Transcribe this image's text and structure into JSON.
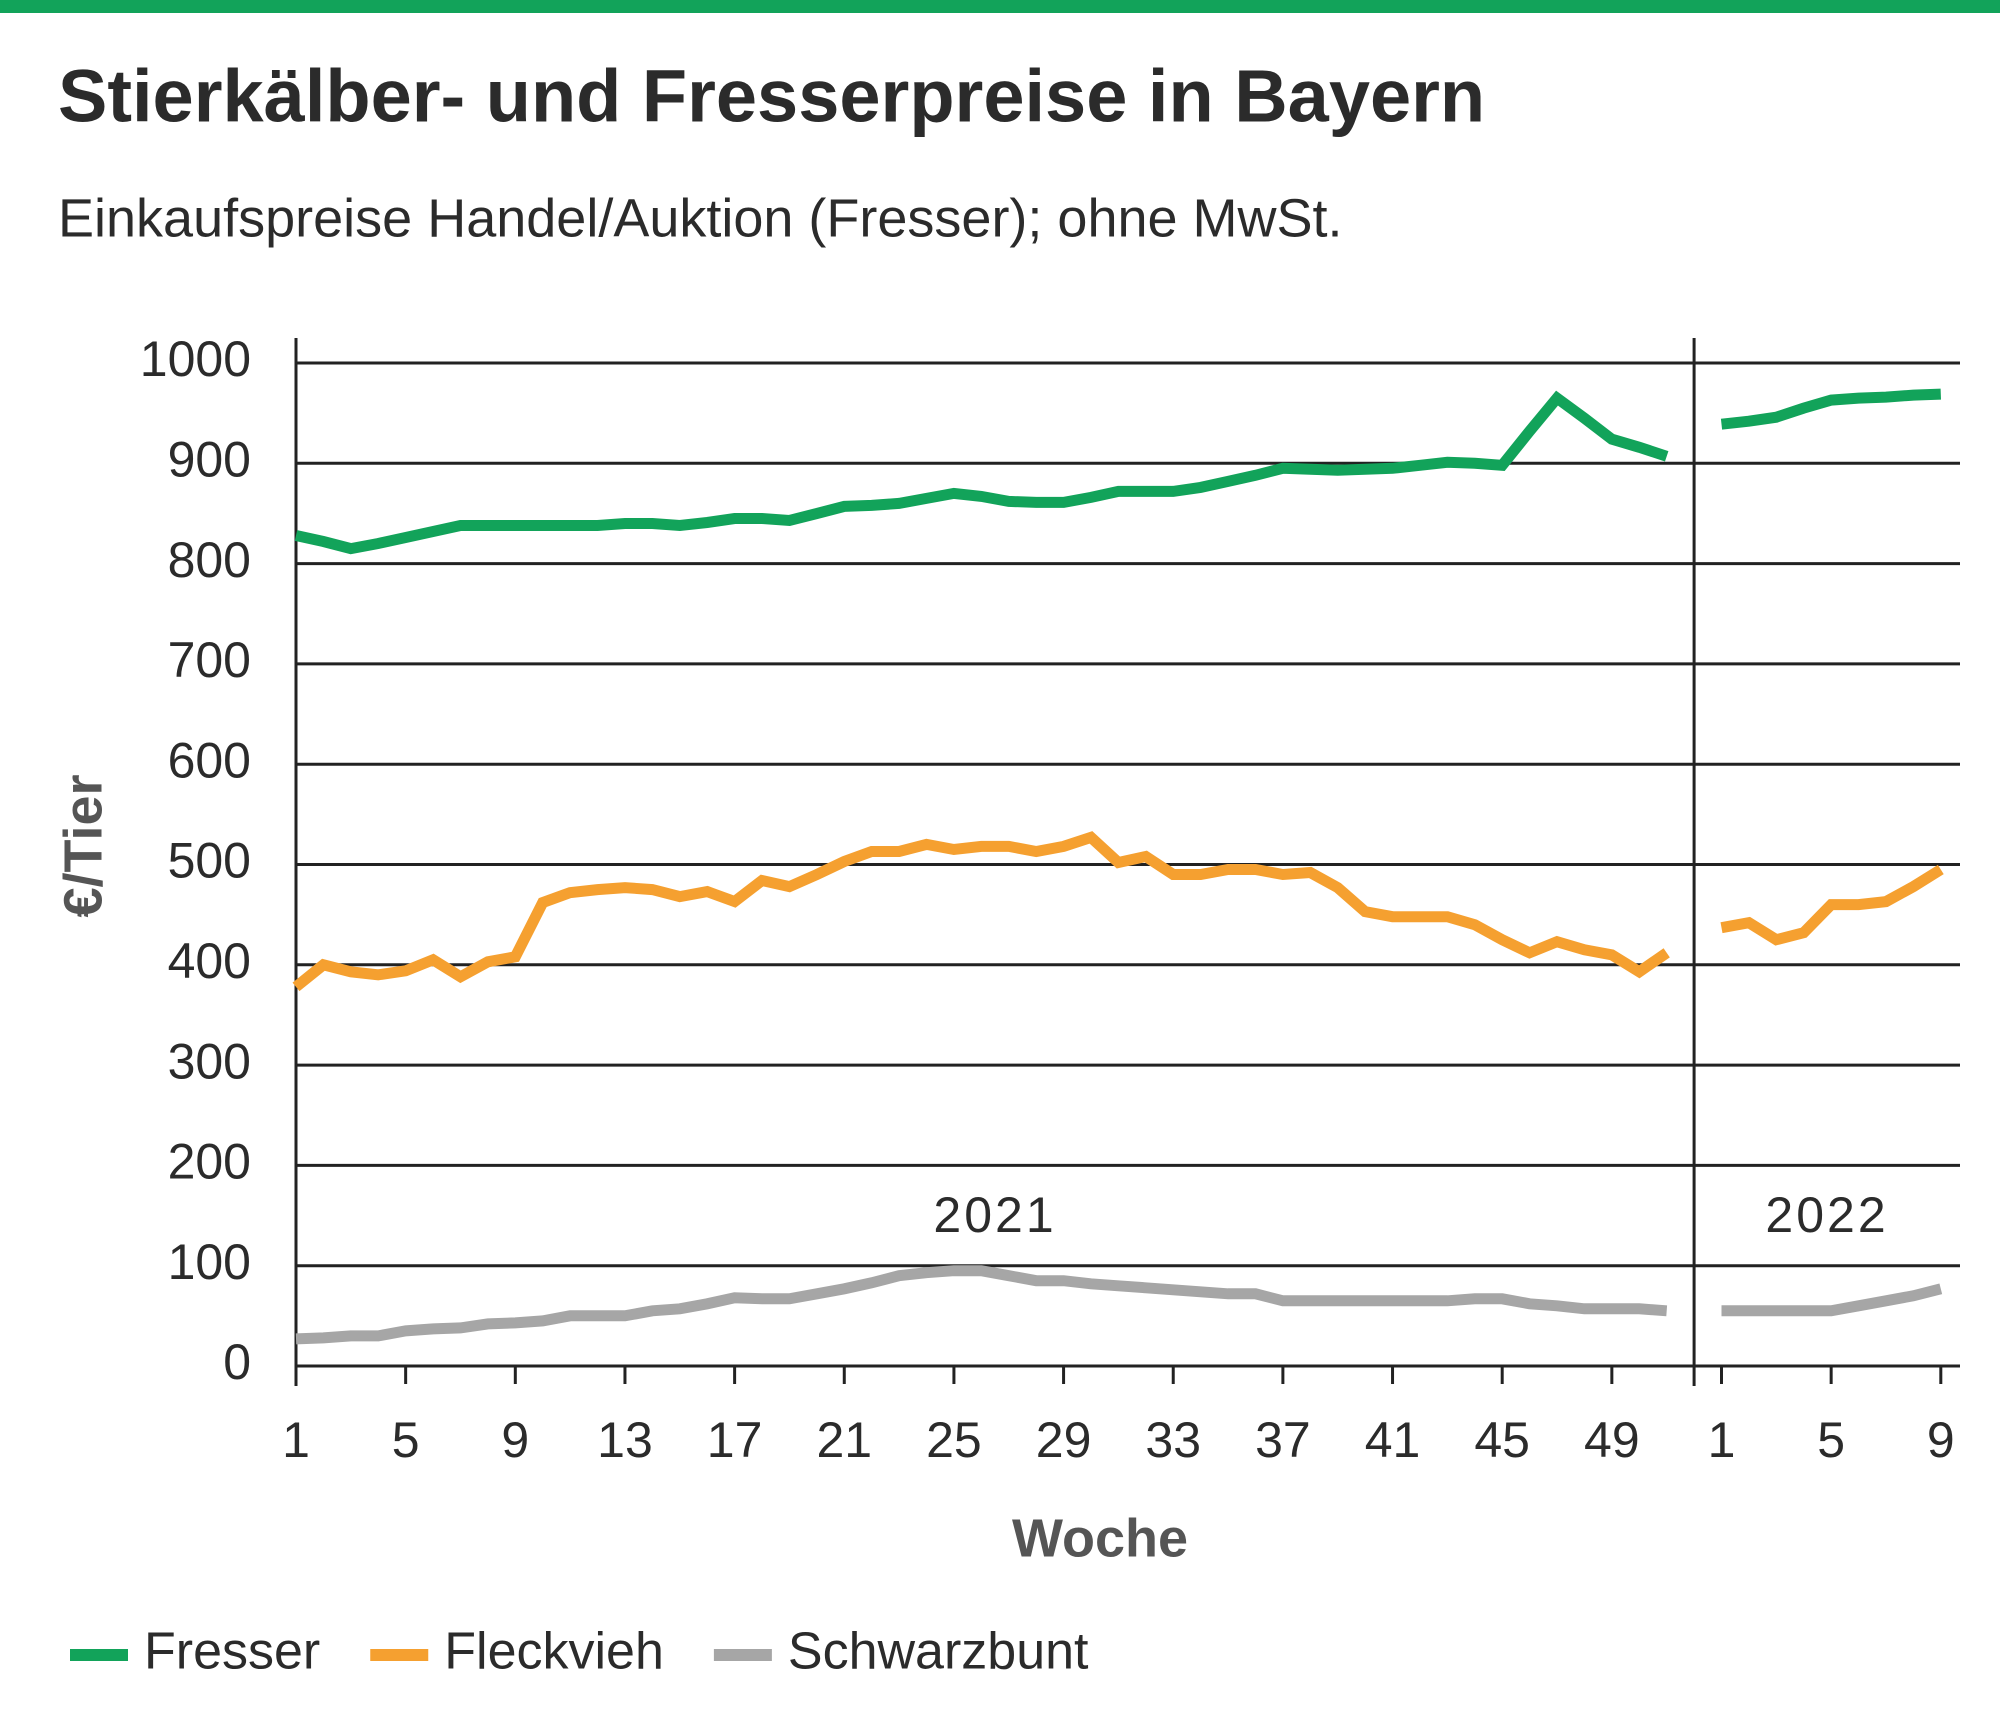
{
  "chart_data": {
    "type": "line",
    "title": "Stierkälber- und Fresserpreise in Bayern",
    "subtitle": "Einkaufspreise Handel/Auktion (Fresser); ohne MwSt.",
    "y_label": "€/Tier",
    "x_label": "Woche",
    "groups": [
      "2021",
      "2022"
    ],
    "categories": [
      "1",
      null,
      null,
      null,
      "5",
      null,
      null,
      null,
      "9",
      null,
      null,
      null,
      "13",
      null,
      null,
      null,
      "17",
      null,
      null,
      null,
      "21",
      null,
      null,
      null,
      "25",
      null,
      null,
      null,
      "29",
      null,
      null,
      null,
      "33",
      null,
      null,
      null,
      "37",
      null,
      null,
      null,
      "41",
      null,
      null,
      null,
      "45",
      null,
      null,
      null,
      "49",
      null,
      null,
      "1",
      null,
      null,
      null,
      "5",
      null,
      null,
      null,
      "9"
    ],
    "series": [
      {
        "name": "Fresser",
        "color": "#12a35a",
        "values": [
          828,
          822,
          815,
          820,
          826,
          832,
          838,
          838,
          838,
          838,
          838,
          838,
          840,
          840,
          838,
          841,
          845,
          845,
          843,
          850,
          857,
          858,
          860,
          865,
          870,
          867,
          862,
          861,
          861,
          866,
          872,
          872,
          872,
          876,
          882,
          888,
          895,
          894,
          893,
          894,
          895,
          898,
          901,
          900,
          898,
          932,
          965,
          945,
          924,
          916,
          907,
          939,
          942,
          946,
          955,
          963,
          965,
          966,
          968,
          969
        ]
      },
      {
        "name": "Fleckvieh",
        "color": "#f5a030",
        "values": [
          378,
          400,
          393,
          390,
          394,
          405,
          388,
          403,
          408,
          462,
          472,
          475,
          477,
          475,
          468,
          473,
          463,
          484,
          478,
          490,
          503,
          513,
          513,
          520,
          515,
          518,
          518,
          513,
          518,
          527,
          502,
          508,
          490,
          490,
          495,
          495,
          490,
          492,
          477,
          453,
          448,
          448,
          448,
          440,
          425,
          412,
          423,
          415,
          410,
          393,
          412,
          437,
          442,
          425,
          432,
          460,
          460,
          463,
          478,
          495
        ]
      },
      {
        "name": "Schwarzbunt",
        "color": "#a6a6a6",
        "values": [
          27,
          28,
          30,
          30,
          35,
          37,
          38,
          42,
          43,
          45,
          50,
          50,
          50,
          55,
          57,
          62,
          68,
          67,
          67,
          72,
          77,
          83,
          90,
          93,
          95,
          95,
          90,
          85,
          85,
          82,
          80,
          78,
          76,
          74,
          72,
          72,
          65,
          65,
          65,
          65,
          65,
          65,
          65,
          67,
          67,
          62,
          60,
          57,
          57,
          57,
          55,
          55,
          55,
          55,
          55,
          55,
          60,
          65,
          70,
          77
        ]
      }
    ],
    "ylim": [
      0,
      1000
    ],
    "yticks": [
      0,
      100,
      200,
      300,
      400,
      500,
      600,
      700,
      800,
      900,
      1000
    ],
    "grid": true,
    "legend": "bottom-left"
  }
}
